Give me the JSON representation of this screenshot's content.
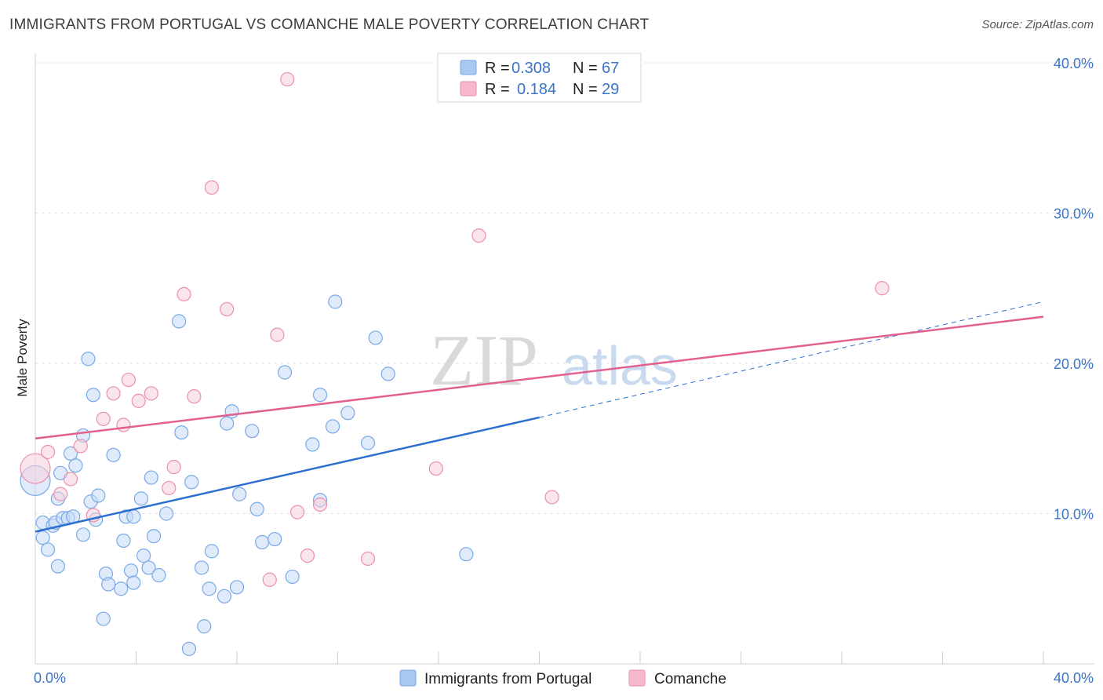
{
  "header": {
    "title": "IMMIGRANTS FROM PORTUGAL VS COMANCHE MALE POVERTY CORRELATION CHART",
    "source": "Source: ZipAtlas.com"
  },
  "watermark": {
    "zip": "ZIP",
    "atlas": "atlas"
  },
  "legend_box": {
    "rows": [
      {
        "r_label": "R =",
        "r_value": "0.308",
        "n_label": "N =",
        "n_value": "67",
        "color": "#a9c8f0"
      },
      {
        "r_label": "R =",
        "r_value": "0.184",
        "n_label": "N =",
        "n_value": "29",
        "color": "#f6b8cb"
      }
    ]
  },
  "bottom_legend": [
    {
      "label": "Immigrants from Portugal",
      "color": "#a9c8f0"
    },
    {
      "label": "Comanche",
      "color": "#f6b8cb"
    }
  ],
  "chart_data": {
    "type": "scatter",
    "title": "IMMIGRANTS FROM PORTUGAL VS COMANCHE MALE POVERTY CORRELATION CHART",
    "xlabel": "",
    "ylabel": "Male Poverty",
    "xlim": [
      0,
      40
    ],
    "ylim": [
      0,
      40
    ],
    "x_tick_labels": [
      "0.0%",
      "40.0%"
    ],
    "y_ticks": [
      10,
      20,
      30,
      40
    ],
    "y_tick_labels": [
      "10.0%",
      "20.0%",
      "30.0%",
      "40.0%"
    ],
    "grid": true,
    "legend_position": "top-center",
    "series": [
      {
        "name": "Immigrants from Portugal",
        "color": "#7aa9e6",
        "fill": "#c5daf5",
        "trend": {
          "x": [
            0,
            20
          ],
          "y": [
            8.8,
            16.4
          ],
          "color": "#2b6fcf",
          "dashed_extension_to": [
            40,
            24.1
          ]
        },
        "points": [
          [
            0.0,
            12.2
          ],
          [
            0.3,
            9.4
          ],
          [
            0.3,
            8.4
          ],
          [
            0.5,
            7.6
          ],
          [
            0.7,
            9.2
          ],
          [
            0.8,
            9.4
          ],
          [
            0.9,
            6.5
          ],
          [
            0.9,
            11.0
          ],
          [
            1.0,
            12.7
          ],
          [
            1.1,
            9.7
          ],
          [
            1.3,
            9.7
          ],
          [
            1.4,
            14.0
          ],
          [
            1.5,
            9.8
          ],
          [
            1.6,
            13.2
          ],
          [
            1.9,
            8.6
          ],
          [
            1.9,
            15.2
          ],
          [
            2.1,
            20.3
          ],
          [
            2.2,
            10.8
          ],
          [
            2.3,
            17.9
          ],
          [
            2.4,
            9.6
          ],
          [
            2.5,
            11.2
          ],
          [
            2.7,
            3.0
          ],
          [
            2.8,
            6.0
          ],
          [
            2.9,
            5.3
          ],
          [
            3.1,
            13.9
          ],
          [
            3.4,
            5.0
          ],
          [
            3.5,
            8.2
          ],
          [
            3.6,
            9.8
          ],
          [
            3.8,
            6.2
          ],
          [
            3.9,
            9.8
          ],
          [
            3.9,
            5.4
          ],
          [
            4.2,
            11.0
          ],
          [
            4.3,
            7.2
          ],
          [
            4.5,
            6.4
          ],
          [
            4.6,
            12.4
          ],
          [
            4.7,
            8.5
          ],
          [
            4.9,
            5.9
          ],
          [
            5.2,
            10.0
          ],
          [
            5.7,
            22.8
          ],
          [
            5.8,
            15.4
          ],
          [
            6.1,
            1.0
          ],
          [
            6.2,
            12.1
          ],
          [
            6.6,
            6.4
          ],
          [
            6.7,
            2.5
          ],
          [
            6.9,
            5.0
          ],
          [
            7.0,
            7.5
          ],
          [
            7.5,
            4.5
          ],
          [
            7.6,
            16.0
          ],
          [
            7.8,
            16.8
          ],
          [
            8.0,
            5.1
          ],
          [
            8.1,
            11.3
          ],
          [
            8.6,
            15.5
          ],
          [
            8.8,
            10.3
          ],
          [
            9.0,
            8.1
          ],
          [
            9.5,
            8.3
          ],
          [
            9.9,
            19.4
          ],
          [
            10.2,
            5.8
          ],
          [
            11.0,
            14.6
          ],
          [
            11.3,
            17.9
          ],
          [
            11.3,
            10.9
          ],
          [
            11.8,
            15.8
          ],
          [
            11.9,
            24.1
          ],
          [
            12.4,
            16.7
          ],
          [
            13.2,
            14.7
          ],
          [
            13.5,
            21.7
          ],
          [
            14.0,
            19.3
          ],
          [
            17.1,
            7.3
          ]
        ]
      },
      {
        "name": "Comanche",
        "color": "#eb8fad",
        "fill": "#f8d0dc",
        "trend": {
          "x": [
            0,
            40
          ],
          "y": [
            15.0,
            23.1
          ],
          "color": "#e26090"
        },
        "points": [
          [
            0.0,
            13.0
          ],
          [
            0.5,
            14.1
          ],
          [
            1.0,
            11.3
          ],
          [
            1.4,
            12.3
          ],
          [
            1.8,
            14.5
          ],
          [
            2.3,
            9.9
          ],
          [
            2.7,
            16.3
          ],
          [
            3.1,
            18.0
          ],
          [
            3.5,
            15.9
          ],
          [
            3.7,
            18.9
          ],
          [
            4.1,
            17.5
          ],
          [
            4.6,
            18.0
          ],
          [
            5.3,
            11.7
          ],
          [
            5.5,
            13.1
          ],
          [
            5.9,
            24.6
          ],
          [
            6.3,
            17.8
          ],
          [
            7.0,
            31.7
          ],
          [
            7.6,
            23.6
          ],
          [
            9.3,
            5.6
          ],
          [
            9.6,
            21.9
          ],
          [
            10.0,
            38.9
          ],
          [
            10.4,
            10.1
          ],
          [
            10.8,
            7.2
          ],
          [
            11.3,
            10.6
          ],
          [
            13.2,
            7.0
          ],
          [
            15.9,
            13.0
          ],
          [
            17.6,
            28.5
          ],
          [
            20.5,
            11.1
          ],
          [
            33.6,
            25.0
          ]
        ]
      }
    ]
  }
}
